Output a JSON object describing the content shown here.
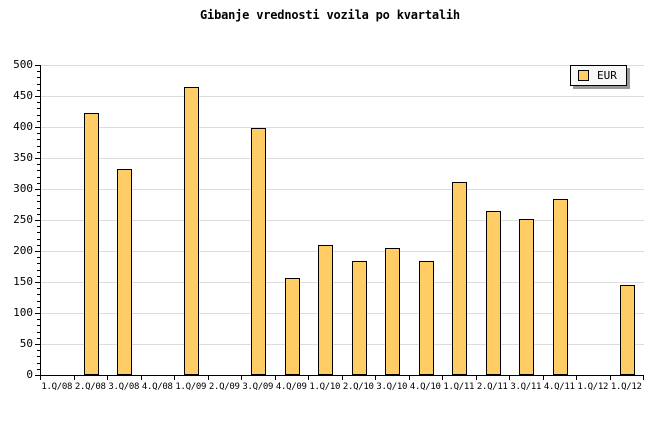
{
  "chart_data": {
    "type": "bar",
    "title": "Gibanje vrednosti vozila po kvartalih",
    "categories": [
      "1.Q/08",
      "2.Q/08",
      "3.Q/08",
      "4.Q/08",
      "1.Q/09",
      "2.Q/09",
      "3.Q/09",
      "4.Q/09",
      "1.Q/10",
      "2.Q/10",
      "3.Q/10",
      "4.Q/10",
      "1.Q/11",
      "2.Q/11",
      "3.Q/11",
      "4.Q/11",
      "1.Q/12",
      "1.Q/12"
    ],
    "series": [
      {
        "name": "EUR",
        "values": [
          null,
          422,
          332,
          null,
          465,
          null,
          398,
          157,
          210,
          184,
          205,
          184,
          312,
          265,
          252,
          284,
          null,
          145
        ]
      }
    ],
    "xlabel": "",
    "ylabel": "",
    "ylim": [
      0,
      500
    ],
    "yticks": [
      0,
      50,
      100,
      150,
      200,
      250,
      300,
      350,
      400,
      450,
      500
    ],
    "y_minor_step": 10,
    "grid": true,
    "legend_position": "top-right"
  },
  "colors": {
    "bar_fill": "#FFCC66",
    "bar_border": "#000000",
    "grid": "#DDDDDD",
    "axis": "#000000",
    "background": "#FFFFFF",
    "legend_bg": "#F8F8F8",
    "legend_shadow": "#999999",
    "text": "#000000"
  }
}
